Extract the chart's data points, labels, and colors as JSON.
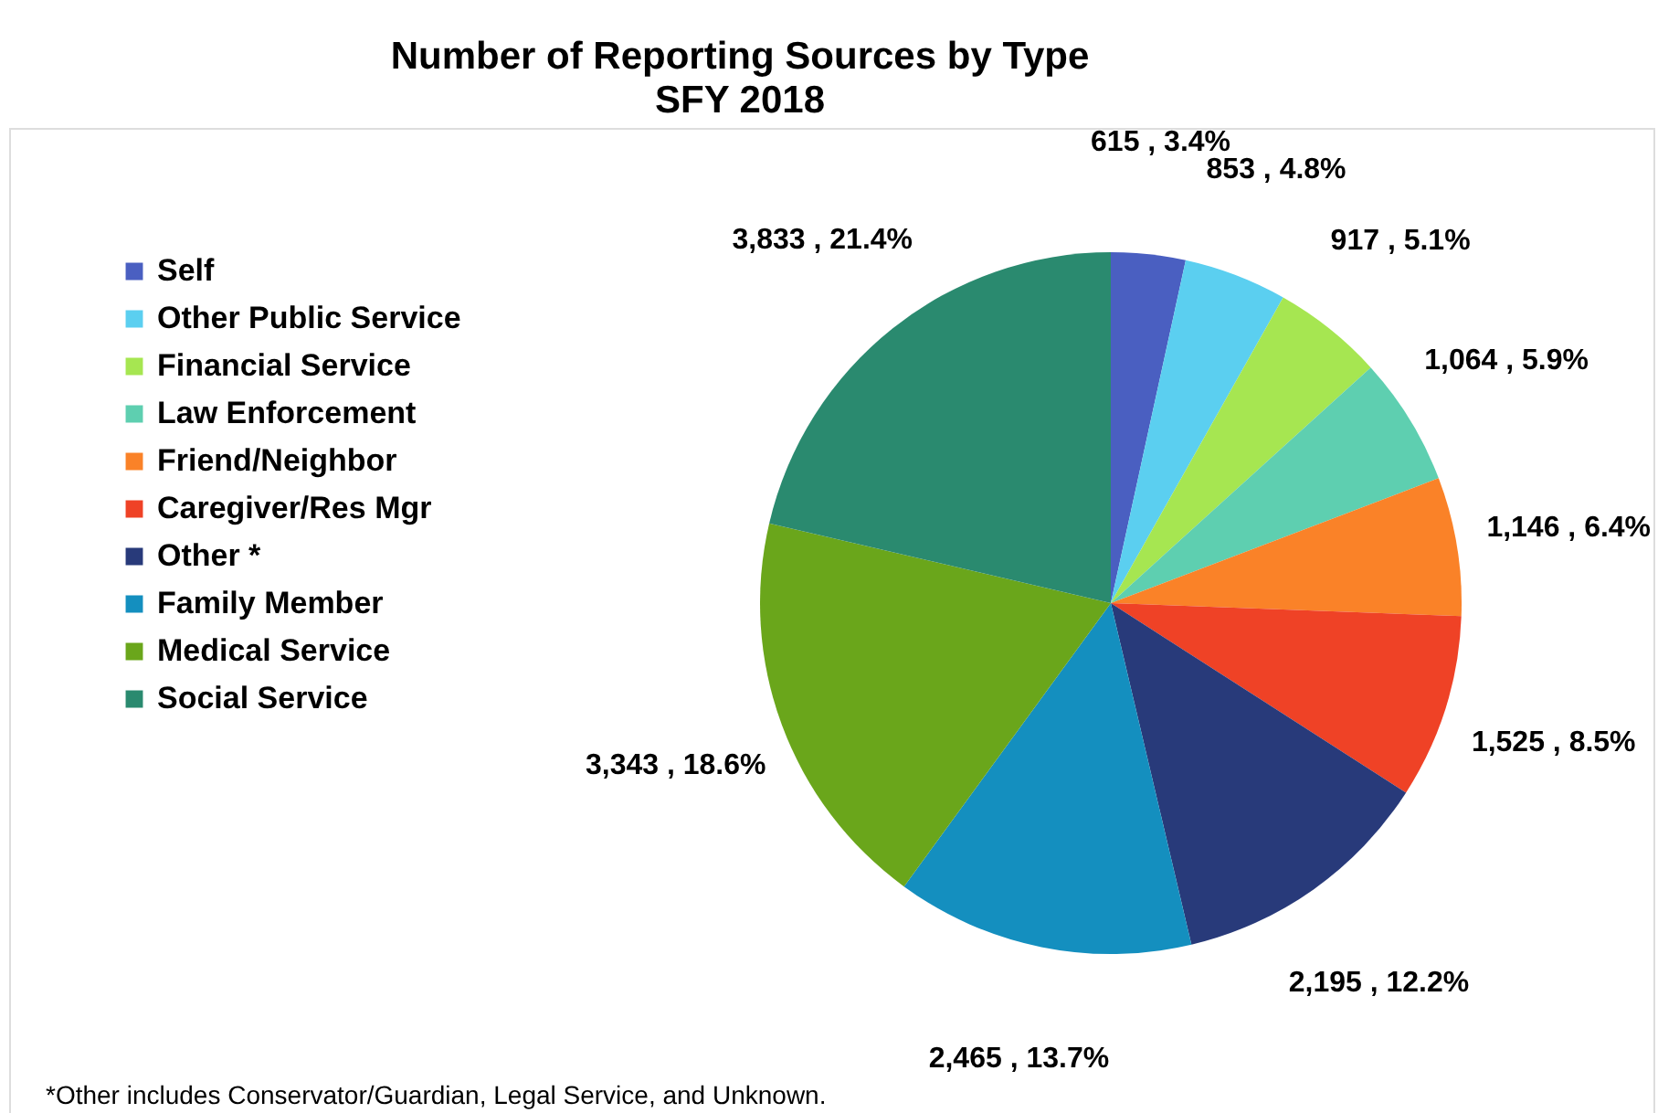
{
  "chart_data": {
    "type": "pie",
    "title": "Number of Reporting Sources by Type",
    "subtitle": "SFY 2018",
    "categories": [
      "Self",
      "Other Public Service",
      "Financial Service",
      "Law Enforcement",
      "Friend/Neighbor",
      "Caregiver/Res Mgr",
      "Other *",
      "Family Member",
      "Medical Service",
      "Social Service"
    ],
    "values": [
      615,
      853,
      917,
      1064,
      1146,
      1525,
      2195,
      2465,
      3343,
      3833
    ],
    "value_labels": [
      "615 , 3.4%",
      "853 , 4.8%",
      "917 , 5.1%",
      "1,064 , 5.9%",
      "1,146 , 6.4%",
      "1,525 , 8.5%",
      "2,195 , 12.2%",
      "2,465 , 13.7%",
      "3,343 , 18.6%",
      "3,833 , 21.4%"
    ],
    "colors": [
      "#4a5fc1",
      "#5bcff0",
      "#a6e651",
      "#5ecfb0",
      "#fa8228",
      "#ef4226",
      "#283a7a",
      "#148fbf",
      "#6aa61b",
      "#2a8a6f"
    ],
    "legend": "left",
    "annotations": [
      "*Other includes Conservator/Guardian, Legal Service, and Unknown."
    ]
  }
}
